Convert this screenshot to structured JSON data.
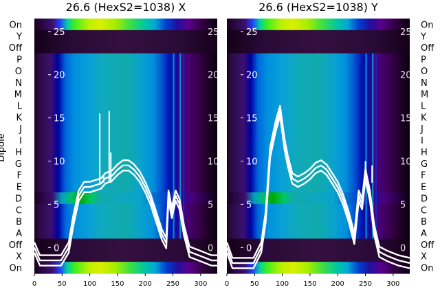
{
  "figure": {
    "y_axis_title": "Dipole",
    "row_labels": [
      "On",
      "Y",
      "Off",
      "P",
      "O",
      "N",
      "M",
      "L",
      "K",
      "J",
      "I",
      "H",
      "G",
      "F",
      "E",
      "D",
      "C",
      "B",
      "A",
      "Off",
      "X",
      "On"
    ]
  },
  "chart_data": [
    {
      "type": "heatmap",
      "title": "26.6 (HexS2=1038) X",
      "xlabel": "",
      "ylabel": "Dipole",
      "x_ticks": [
        0,
        50,
        100,
        150,
        200,
        250,
        300
      ],
      "xlim": [
        0,
        330
      ],
      "overlay_y_ticks": [
        25,
        20,
        15,
        10,
        5,
        0
      ],
      "overlay_ylim": [
        -3,
        26.5
      ],
      "colormap": "nipy_spectral",
      "row_labels": [
        "On",
        "Y",
        "Off",
        "P",
        "O",
        "N",
        "M",
        "L",
        "K",
        "J",
        "I",
        "H",
        "G",
        "F",
        "E",
        "D",
        "C",
        "B",
        "A",
        "Off",
        "X",
        "On"
      ],
      "overlay_line": {
        "color": "#ffffff",
        "x": [
          0,
          10,
          30,
          48,
          62,
          70,
          80,
          90,
          100,
          110,
          120,
          128,
          140,
          150,
          160,
          170,
          180,
          190,
          200,
          210,
          220,
          230,
          238,
          242,
          248,
          255,
          262,
          270,
          280,
          300,
          320,
          330
        ],
        "y": [
          0,
          -1.5,
          -1.5,
          -1.5,
          0,
          3,
          6,
          7,
          7,
          7.2,
          7.4,
          8,
          8.3,
          9,
          9.5,
          9.5,
          9,
          8.2,
          7,
          5.5,
          3.5,
          1.5,
          0.5,
          6,
          4,
          6,
          5,
          2,
          -0.5,
          -1,
          -1.5,
          -1.5
        ]
      },
      "overlay_spikes": [
        {
          "x": 118,
          "y": 15.5
        },
        {
          "x": 125,
          "y": 8.5
        },
        {
          "x": 135,
          "y": 15.8
        },
        {
          "x": 138,
          "y": 11
        }
      ]
    },
    {
      "type": "heatmap",
      "title": "26.6 (HexS2=1038) Y",
      "xlabel": "",
      "ylabel": "",
      "x_ticks": [
        0,
        50,
        100,
        150,
        200,
        250,
        300
      ],
      "xlim": [
        0,
        330
      ],
      "overlay_y_ticks": [
        25,
        20,
        15,
        10,
        5,
        0
      ],
      "overlay_ylim": [
        -3,
        26.5
      ],
      "colormap": "nipy_spectral",
      "row_labels": [
        "On",
        "Y",
        "Off",
        "P",
        "O",
        "N",
        "M",
        "L",
        "K",
        "J",
        "I",
        "H",
        "G",
        "F",
        "E",
        "D",
        "C",
        "B",
        "A",
        "Off",
        "X",
        "On"
      ],
      "overlay_line": {
        "color": "#ffffff",
        "x": [
          0,
          10,
          30,
          48,
          62,
          70,
          78,
          88,
          96,
          104,
          110,
          118,
          128,
          140,
          150,
          160,
          170,
          180,
          190,
          200,
          210,
          220,
          230,
          238,
          244,
          250,
          258,
          266,
          275,
          290,
          310,
          330
        ],
        "y": [
          0,
          -1.8,
          -1.8,
          -1.8,
          0,
          3.5,
          11,
          14,
          15.8,
          12,
          10,
          8,
          7.6,
          8,
          8.5,
          9.2,
          9.5,
          9,
          8,
          7,
          5.5,
          3.5,
          1,
          6,
          5,
          8.5,
          6,
          2,
          -0.5,
          -1,
          -1.5,
          -1.8
        ]
      },
      "overlay_spikes": [
        {
          "x": 250,
          "y": 10
        },
        {
          "x": 262,
          "y": 9.5
        }
      ]
    }
  ]
}
